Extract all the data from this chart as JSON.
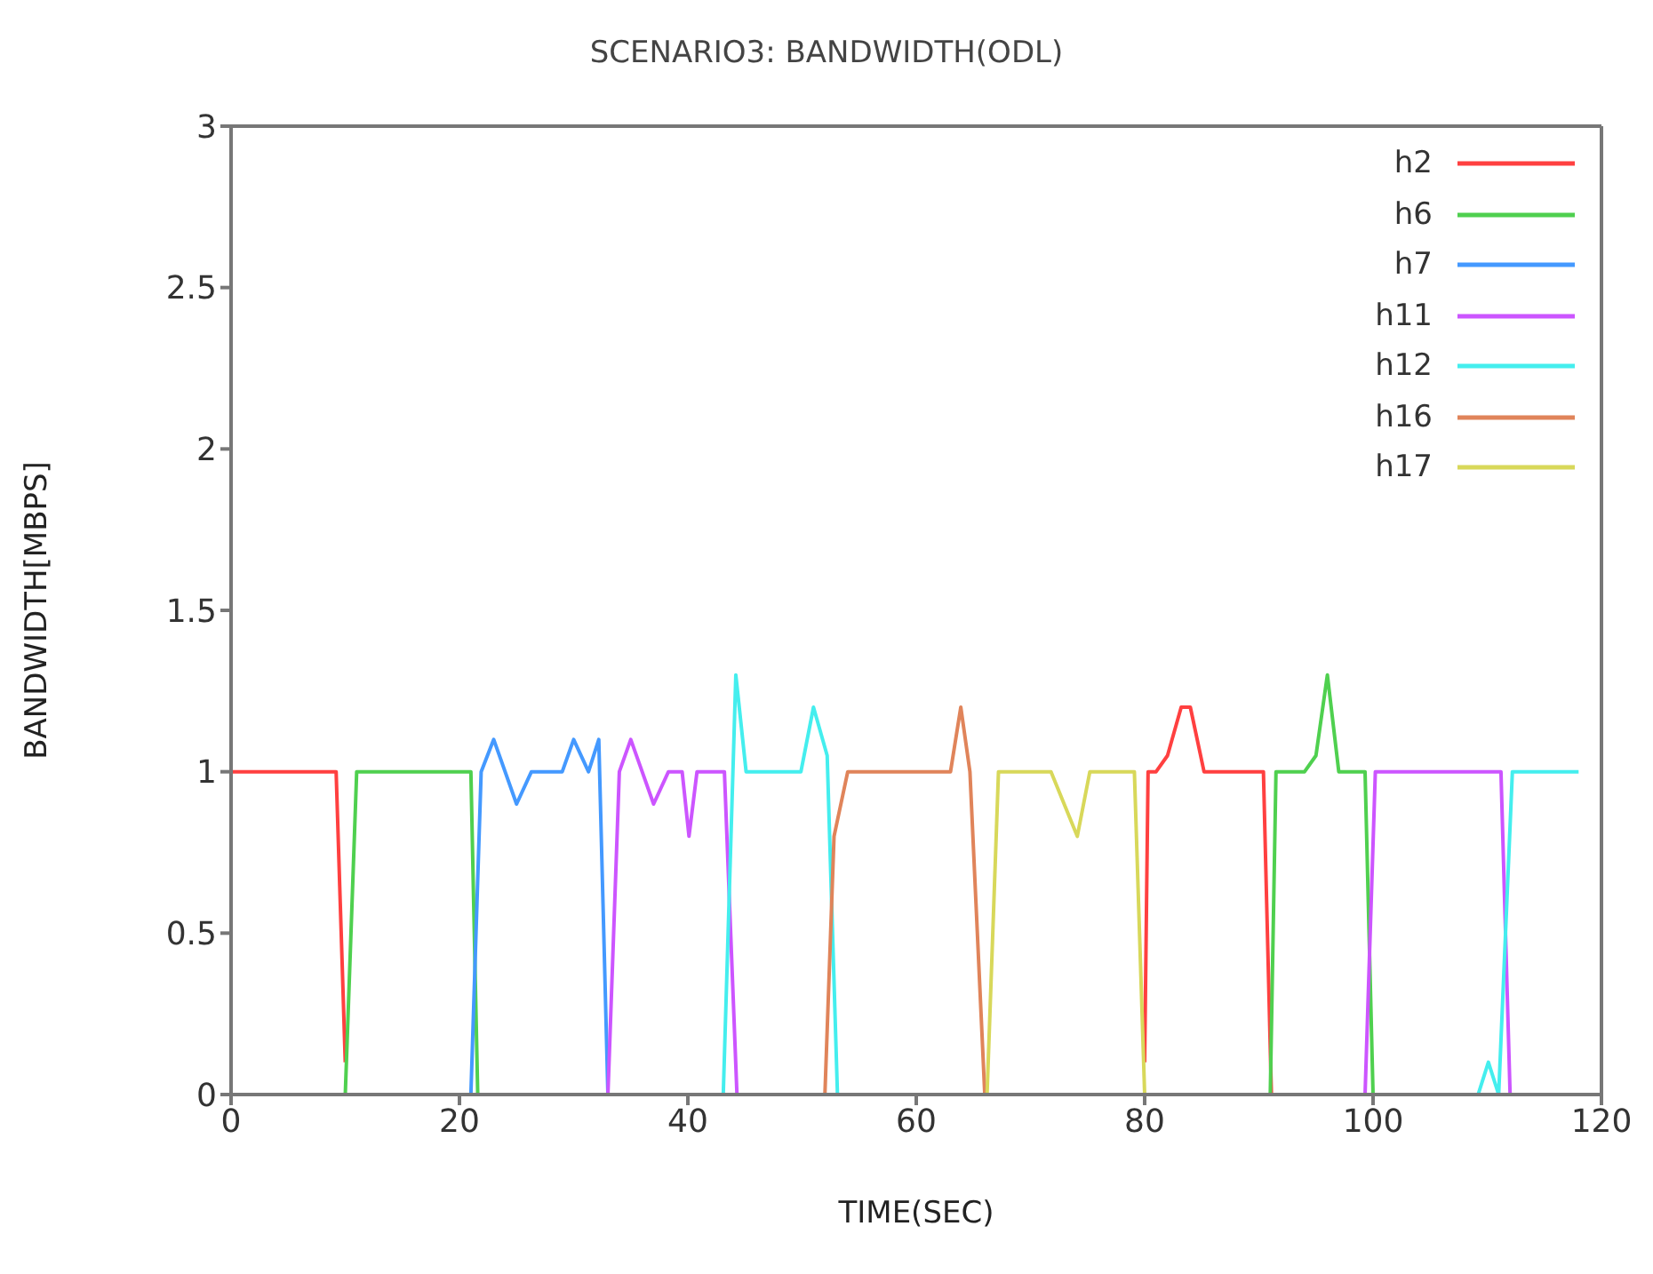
{
  "chart_data": {
    "type": "line",
    "title": "SCENARIO3: BANDWIDTH(ODL)",
    "xlabel": "TIME(SEC)",
    "ylabel": "BANDWIDTH[MBPS]",
    "xlim": [
      0,
      120
    ],
    "xticks": [
      0,
      20,
      40,
      60,
      80,
      100,
      120
    ],
    "ylim": [
      0,
      3
    ],
    "yticks": [
      0,
      0.5,
      1,
      1.5,
      2,
      2.5,
      3
    ],
    "grid": false,
    "legend": "top right",
    "marker": "none",
    "line_style": "solid",
    "series": [
      {
        "name": "h2",
        "color": "#ff4040",
        "x": [
          0,
          4,
          5,
          9.2,
          10,
          45,
          80,
          80.3,
          81,
          82,
          83.2,
          84,
          85.2,
          90.4,
          91.1
        ],
        "values": [
          1,
          1,
          1,
          1,
          0.1,
          null,
          0.1,
          1,
          1,
          1.05,
          1.2,
          1.2,
          1,
          1,
          0
        ]
      },
      {
        "name": "h6",
        "color": "#4fd04f",
        "x": [
          10,
          11,
          21,
          21.6,
          50,
          91,
          91.5,
          94,
          95,
          96,
          97,
          99.3,
          100
        ],
        "values": [
          0,
          1,
          1,
          0,
          null,
          0,
          1,
          1,
          1.05,
          1.3,
          1,
          1,
          0
        ]
      },
      {
        "name": "h7",
        "color": "#4499ff",
        "x": [
          21,
          21.9,
          23,
          25,
          26.3,
          29,
          30,
          31.3,
          32.2,
          33
        ],
        "values": [
          0,
          1,
          1.1,
          0.9,
          1,
          1,
          1.1,
          1,
          1.1,
          0
        ]
      },
      {
        "name": "h11",
        "color": "#cc55ff",
        "x": [
          33,
          34,
          35,
          36,
          37,
          38.3,
          39.5,
          40.1,
          40.8,
          43.2,
          44.3,
          70,
          99.3,
          100.2,
          111.2,
          112
        ],
        "values": [
          0,
          1,
          1.1,
          1,
          0.9,
          1,
          1,
          0.8,
          1,
          1,
          0,
          null,
          0,
          1,
          1,
          0
        ]
      },
      {
        "name": "h12",
        "color": "#44eeee",
        "x": [
          43.1,
          44.2,
          45.1,
          49.9,
          51,
          52.2,
          53.1,
          80,
          109.2,
          110.1,
          111,
          112.2,
          118
        ],
        "values": [
          0,
          1.3,
          1,
          1,
          1.2,
          1.05,
          0,
          null,
          0,
          0.1,
          0,
          1,
          1
        ]
      },
      {
        "name": "h16",
        "color": "#e0845a",
        "x": [
          52,
          52.8,
          54,
          63,
          63.9,
          64.7,
          66
        ],
        "values": [
          0,
          0.8,
          1,
          1,
          1.2,
          1,
          0
        ]
      },
      {
        "name": "h17",
        "color": "#d8d85a",
        "x": [
          66.2,
          67.2,
          71.8,
          74.1,
          75.2,
          79.1,
          80
        ],
        "values": [
          0,
          1,
          1,
          0.8,
          1,
          1,
          0
        ]
      }
    ]
  }
}
